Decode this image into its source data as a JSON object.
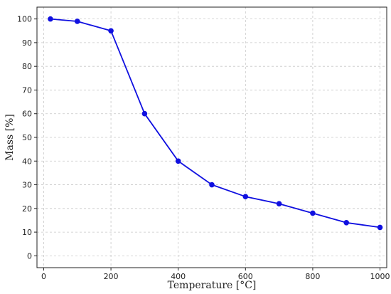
{
  "chart_data": {
    "type": "line",
    "title": "",
    "xlabel": "Temperature [°C]",
    "ylabel": "Mass [%]",
    "xlim": [
      -20,
      1020
    ],
    "ylim": [
      -5,
      105
    ],
    "xticks": [
      0,
      200,
      400,
      600,
      800,
      1000
    ],
    "yticks": [
      0,
      10,
      20,
      30,
      40,
      50,
      60,
      70,
      80,
      90,
      100
    ],
    "grid": true,
    "series": [
      {
        "color": "#1010e0",
        "marker": "circle",
        "x": [
          20,
          100,
          200,
          300,
          400,
          500,
          600,
          700,
          800,
          900,
          1000
        ],
        "y": [
          100,
          99,
          95,
          60,
          40,
          30,
          25,
          22,
          18,
          14,
          12
        ]
      }
    ]
  }
}
